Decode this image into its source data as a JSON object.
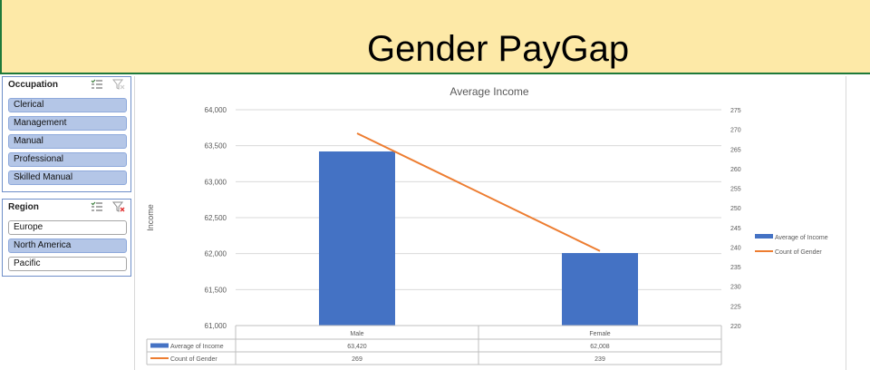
{
  "header": {
    "title": "Gender PayGap"
  },
  "slicers": {
    "occupation": {
      "title": "Occupation",
      "items": [
        {
          "label": "Clerical",
          "selected": true
        },
        {
          "label": "Management",
          "selected": true
        },
        {
          "label": "Manual",
          "selected": true
        },
        {
          "label": "Professional",
          "selected": true
        },
        {
          "label": "Skilled Manual",
          "selected": true
        }
      ]
    },
    "region": {
      "title": "Region",
      "items": [
        {
          "label": "Europe",
          "selected": false
        },
        {
          "label": "North America",
          "selected": true
        },
        {
          "label": "Pacific",
          "selected": false
        }
      ]
    }
  },
  "icons": {
    "multiselect": "multi-select-icon",
    "clear_filter": "clear-filter-icon"
  },
  "colors": {
    "bar": "#4472c4",
    "line": "#ed7d31",
    "slicer_selected": "#b4c6e7",
    "banner": "#fde9a7"
  },
  "chart_data": {
    "type": "bar",
    "title": "Average Income",
    "categories": [
      "Male",
      "Female"
    ],
    "ylabel": "Income",
    "ylim": [
      61000,
      64000
    ],
    "yticks": [
      "61,000",
      "61,500",
      "62,000",
      "62,500",
      "63,000",
      "63,500",
      "64,000"
    ],
    "y2lim": [
      220,
      275
    ],
    "y2ticks": [
      "220",
      "225",
      "230",
      "235",
      "240",
      "245",
      "250",
      "255",
      "260",
      "265",
      "270",
      "275"
    ],
    "series": [
      {
        "name": "Average of Income",
        "kind": "bar",
        "axis": "primary",
        "values": [
          63420,
          62008
        ],
        "labels": [
          "63,420",
          "62,008"
        ]
      },
      {
        "name": "Count of Gender",
        "kind": "line",
        "axis": "secondary",
        "values": [
          269,
          239
        ],
        "labels": [
          "269",
          "239"
        ]
      }
    ],
    "legend": "right",
    "grid": true,
    "data_table": true
  }
}
